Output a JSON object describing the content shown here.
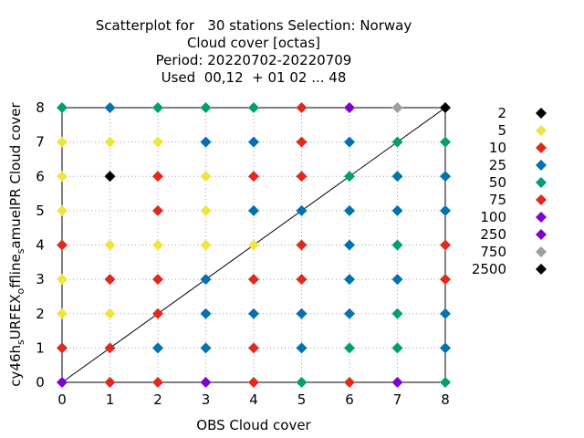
{
  "chart_data": {
    "type": "scatter",
    "title": [
      "Scatterplot for   30 stations Selection: Norway",
      "Cloud cover [octas]",
      "Period: 20220702-20220709",
      "Used  00,12  + 01 02 ... 48"
    ],
    "xlabel": "OBS Cloud cover",
    "ylabel": "cy46h_s URFEX_o ffline_s amuelPR Cloud cover",
    "ylabel_parts": [
      "cy46h",
      "s",
      "URFEX",
      "o",
      "ffline",
      "s",
      "amuelPR Cloud cover"
    ],
    "xlim": [
      0,
      8
    ],
    "ylim": [
      0,
      8
    ],
    "xticks": [
      0,
      1,
      2,
      3,
      4,
      5,
      6,
      7,
      8
    ],
    "yticks": [
      0,
      1,
      2,
      3,
      4,
      5,
      6,
      7,
      8
    ],
    "grid": true,
    "diagonal": true,
    "legend_position": "right",
    "legend": [
      {
        "label": "2",
        "color": "#000000"
      },
      {
        "label": "5",
        "color": "#f0e442"
      },
      {
        "label": "10",
        "color": "#e02a1c"
      },
      {
        "label": "25",
        "color": "#0072b2"
      },
      {
        "label": "50",
        "color": "#009e73"
      },
      {
        "label": "75",
        "color": "#e02a1c"
      },
      {
        "label": "100",
        "color": "#8000d0"
      },
      {
        "label": "250",
        "color": "#8000d0"
      },
      {
        "label": "750",
        "color": "#9e9e9e"
      },
      {
        "label": "2500",
        "color": "#000000"
      }
    ],
    "points": [
      {
        "x": 0,
        "y": 8,
        "c": "#009e73"
      },
      {
        "x": 1,
        "y": 8,
        "c": "#0072b2"
      },
      {
        "x": 2,
        "y": 8,
        "c": "#009e73"
      },
      {
        "x": 3,
        "y": 8,
        "c": "#009e73"
      },
      {
        "x": 4,
        "y": 8,
        "c": "#009e73"
      },
      {
        "x": 5,
        "y": 8,
        "c": "#e02a1c"
      },
      {
        "x": 6,
        "y": 8,
        "c": "#8000d0"
      },
      {
        "x": 7,
        "y": 8,
        "c": "#9e9e9e"
      },
      {
        "x": 8,
        "y": 8,
        "c": "#000000"
      },
      {
        "x": 0,
        "y": 7,
        "c": "#f0e442"
      },
      {
        "x": 1,
        "y": 7,
        "c": "#f0e442"
      },
      {
        "x": 2,
        "y": 7,
        "c": "#f0e442"
      },
      {
        "x": 3,
        "y": 7,
        "c": "#0072b2"
      },
      {
        "x": 4,
        "y": 7,
        "c": "#0072b2"
      },
      {
        "x": 5,
        "y": 7,
        "c": "#e02a1c"
      },
      {
        "x": 6,
        "y": 7,
        "c": "#0072b2"
      },
      {
        "x": 7,
        "y": 7,
        "c": "#009e73"
      },
      {
        "x": 8,
        "y": 7,
        "c": "#009e73"
      },
      {
        "x": 0,
        "y": 6,
        "c": "#f0e442"
      },
      {
        "x": 1,
        "y": 6,
        "c": "#000000"
      },
      {
        "x": 2,
        "y": 6,
        "c": "#e02a1c"
      },
      {
        "x": 3,
        "y": 6,
        "c": "#f0e442"
      },
      {
        "x": 4,
        "y": 6,
        "c": "#e02a1c"
      },
      {
        "x": 5,
        "y": 6,
        "c": "#e02a1c"
      },
      {
        "x": 6,
        "y": 6,
        "c": "#009e73"
      },
      {
        "x": 7,
        "y": 6,
        "c": "#0072b2"
      },
      {
        "x": 8,
        "y": 6,
        "c": "#0072b2"
      },
      {
        "x": 0,
        "y": 5,
        "c": "#f0e442"
      },
      {
        "x": 2,
        "y": 5,
        "c": "#e02a1c"
      },
      {
        "x": 3,
        "y": 5,
        "c": "#f0e442"
      },
      {
        "x": 4,
        "y": 5,
        "c": "#0072b2"
      },
      {
        "x": 5,
        "y": 5,
        "c": "#0072b2"
      },
      {
        "x": 6,
        "y": 5,
        "c": "#0072b2"
      },
      {
        "x": 7,
        "y": 5,
        "c": "#0072b2"
      },
      {
        "x": 8,
        "y": 5,
        "c": "#0072b2"
      },
      {
        "x": 0,
        "y": 4,
        "c": "#e02a1c"
      },
      {
        "x": 1,
        "y": 4,
        "c": "#f0e442"
      },
      {
        "x": 2,
        "y": 4,
        "c": "#f0e442"
      },
      {
        "x": 3,
        "y": 4,
        "c": "#f0e442"
      },
      {
        "x": 4,
        "y": 4,
        "c": "#f0e442"
      },
      {
        "x": 5,
        "y": 4,
        "c": "#e02a1c"
      },
      {
        "x": 6,
        "y": 4,
        "c": "#0072b2"
      },
      {
        "x": 7,
        "y": 4,
        "c": "#009e73"
      },
      {
        "x": 8,
        "y": 4,
        "c": "#e02a1c"
      },
      {
        "x": 0,
        "y": 3,
        "c": "#f0e442"
      },
      {
        "x": 1,
        "y": 3,
        "c": "#e02a1c"
      },
      {
        "x": 2,
        "y": 3,
        "c": "#e02a1c"
      },
      {
        "x": 3,
        "y": 3,
        "c": "#0072b2"
      },
      {
        "x": 4,
        "y": 3,
        "c": "#e02a1c"
      },
      {
        "x": 5,
        "y": 3,
        "c": "#e02a1c"
      },
      {
        "x": 6,
        "y": 3,
        "c": "#0072b2"
      },
      {
        "x": 7,
        "y": 3,
        "c": "#0072b2"
      },
      {
        "x": 8,
        "y": 3,
        "c": "#e02a1c"
      },
      {
        "x": 0,
        "y": 2,
        "c": "#f0e442"
      },
      {
        "x": 1,
        "y": 2,
        "c": "#f0e442"
      },
      {
        "x": 2,
        "y": 2,
        "c": "#e02a1c"
      },
      {
        "x": 3,
        "y": 2,
        "c": "#0072b2"
      },
      {
        "x": 4,
        "y": 2,
        "c": "#0072b2"
      },
      {
        "x": 5,
        "y": 2,
        "c": "#0072b2"
      },
      {
        "x": 6,
        "y": 2,
        "c": "#0072b2"
      },
      {
        "x": 7,
        "y": 2,
        "c": "#009e73"
      },
      {
        "x": 8,
        "y": 2,
        "c": "#0072b2"
      },
      {
        "x": 0,
        "y": 1,
        "c": "#e02a1c"
      },
      {
        "x": 1,
        "y": 1,
        "c": "#e02a1c"
      },
      {
        "x": 2,
        "y": 1,
        "c": "#0072b2"
      },
      {
        "x": 3,
        "y": 1,
        "c": "#0072b2"
      },
      {
        "x": 4,
        "y": 1,
        "c": "#e02a1c"
      },
      {
        "x": 5,
        "y": 1,
        "c": "#0072b2"
      },
      {
        "x": 6,
        "y": 1,
        "c": "#009e73"
      },
      {
        "x": 7,
        "y": 1,
        "c": "#009e73"
      },
      {
        "x": 8,
        "y": 1,
        "c": "#0072b2"
      },
      {
        "x": 0,
        "y": 0,
        "c": "#8000d0"
      },
      {
        "x": 1,
        "y": 0,
        "c": "#e02a1c"
      },
      {
        "x": 2,
        "y": 0,
        "c": "#e02a1c"
      },
      {
        "x": 3,
        "y": 0,
        "c": "#8000d0"
      },
      {
        "x": 4,
        "y": 0,
        "c": "#e02a1c"
      },
      {
        "x": 5,
        "y": 0,
        "c": "#009e73"
      },
      {
        "x": 6,
        "y": 0,
        "c": "#e02a1c"
      },
      {
        "x": 7,
        "y": 0,
        "c": "#8000d0"
      },
      {
        "x": 8,
        "y": 0,
        "c": "#009e73"
      }
    ]
  }
}
